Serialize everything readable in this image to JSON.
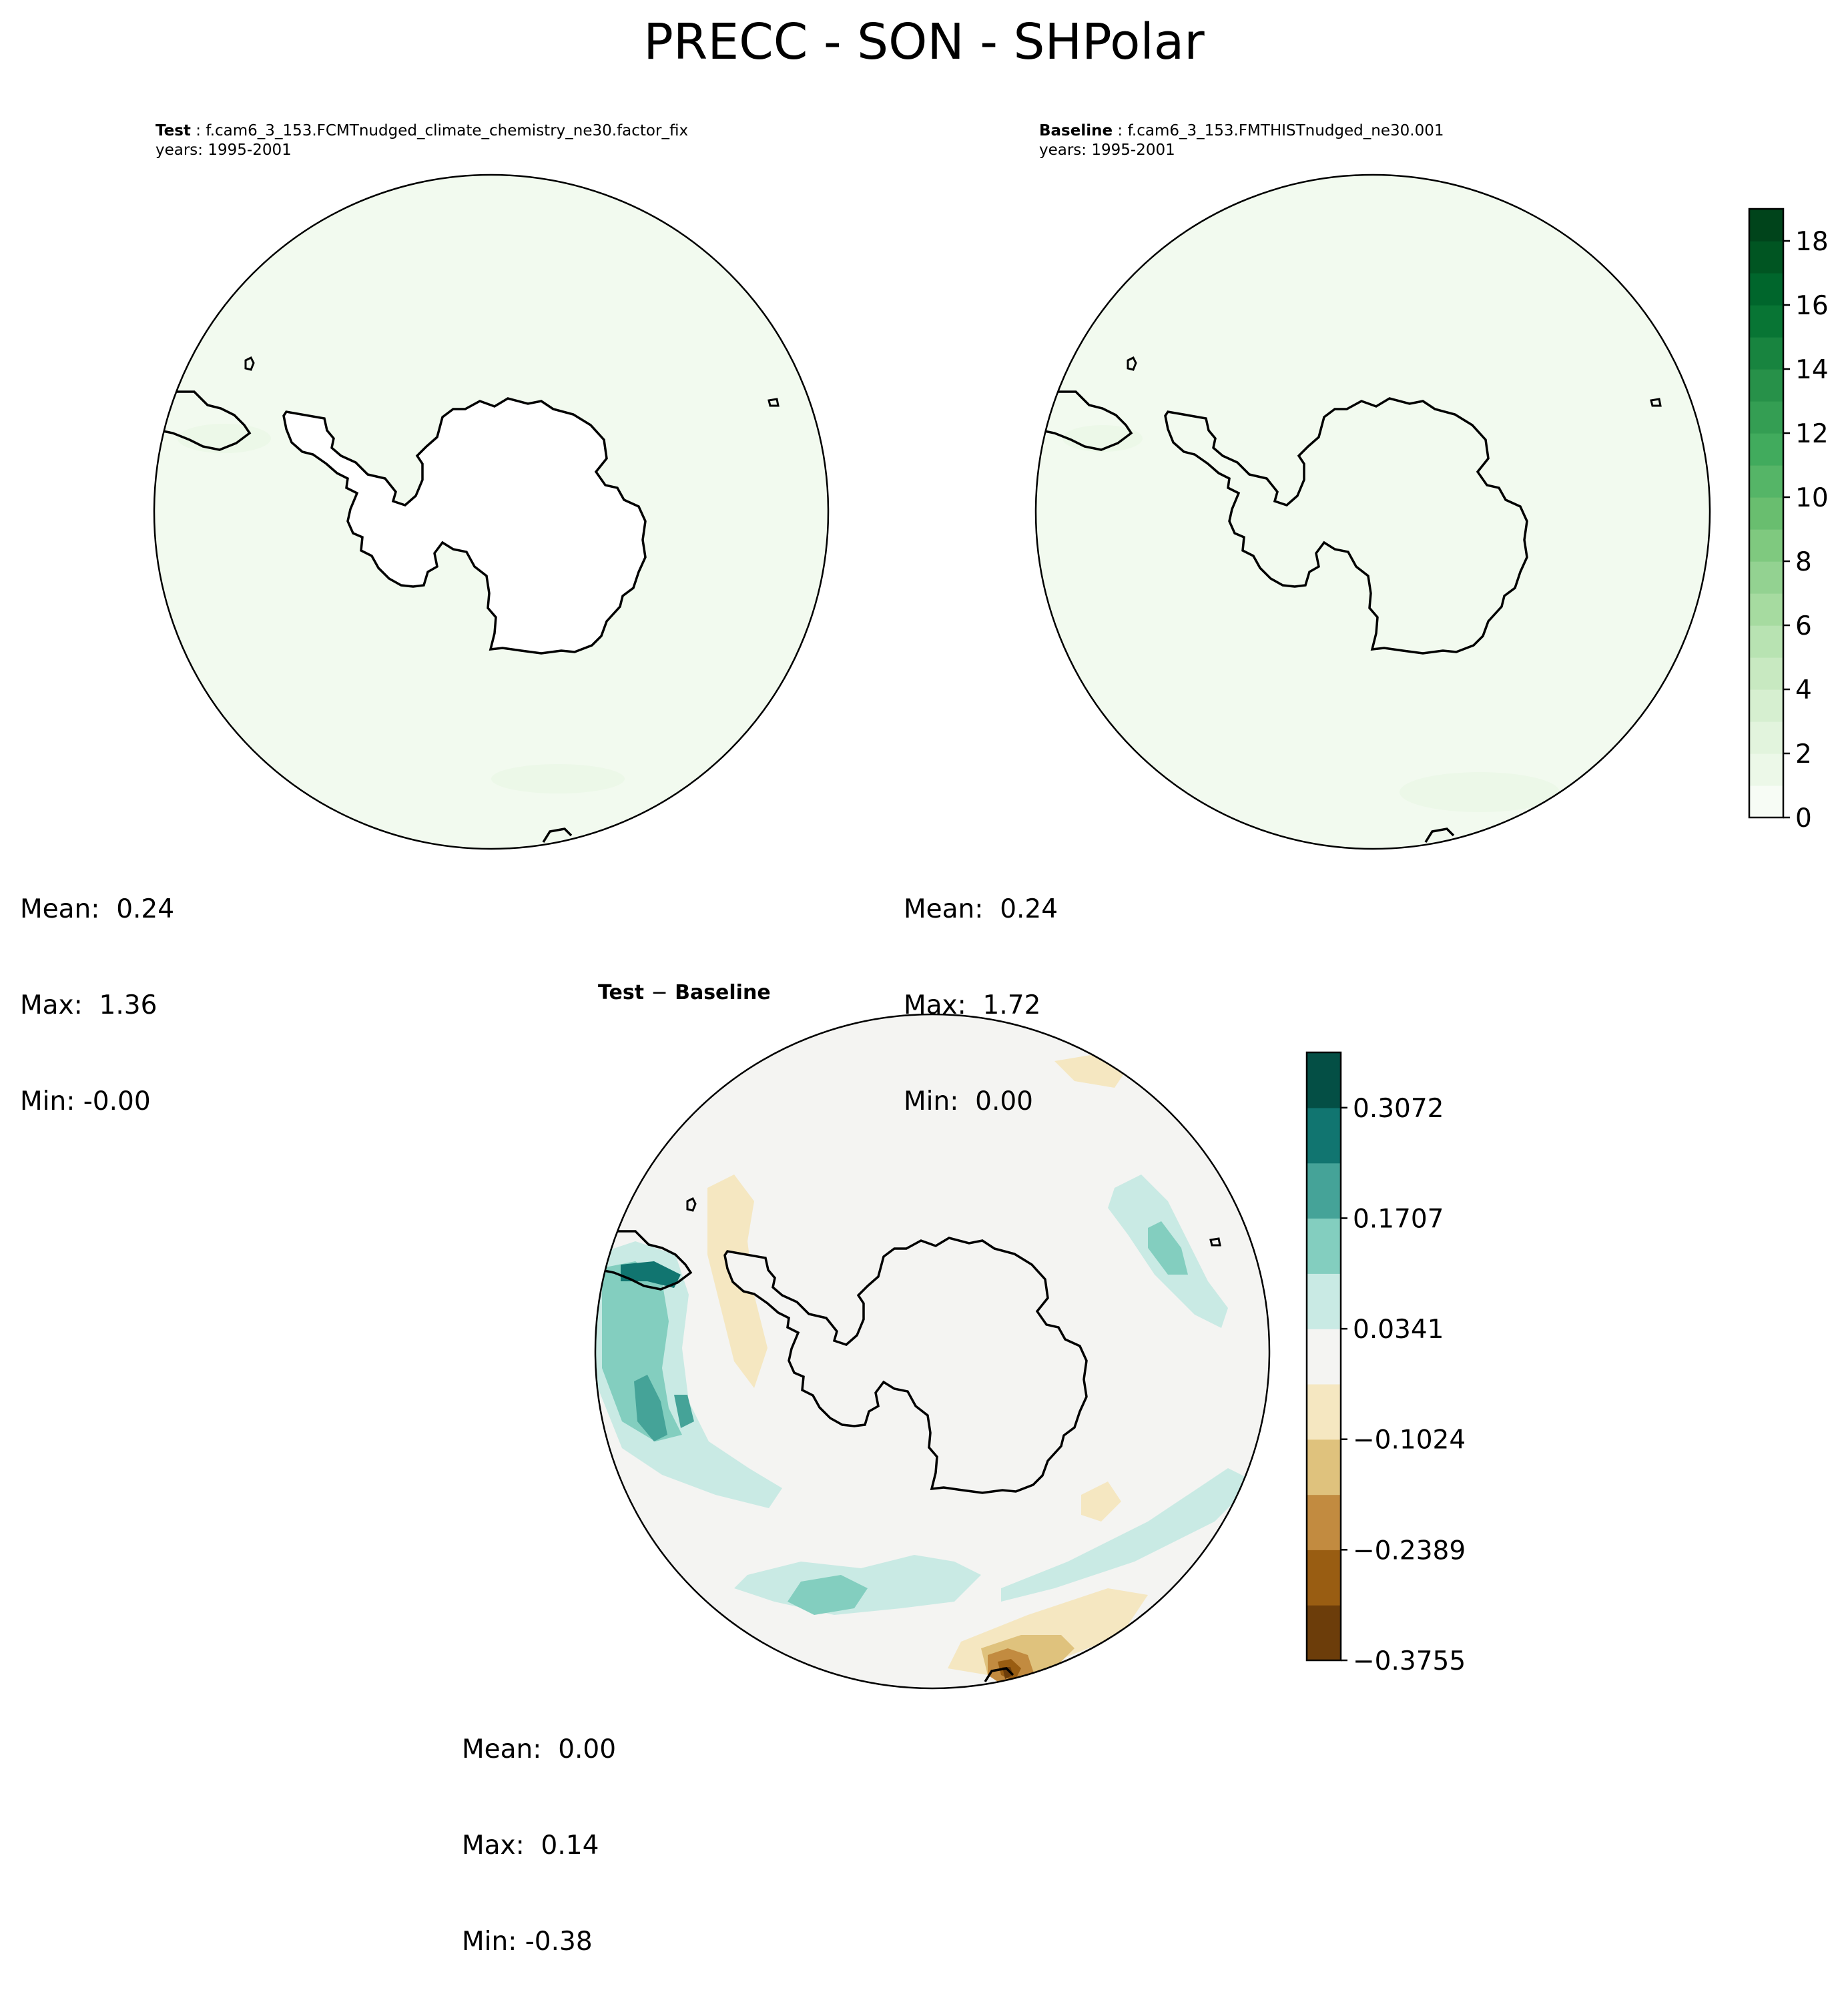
{
  "figure": {
    "title": "PRECC - SON - SHPolar"
  },
  "panels": {
    "test": {
      "label": "Test",
      "case_name": "f.cam6_3_153.FCMTnudged_climate_chemistry_ne30.factor_fix",
      "years": "years: 1995-2001",
      "stats": {
        "mean": "Mean:  0.24",
        "max": "Max:  1.36",
        "min": "Min: -0.00"
      }
    },
    "baseline": {
      "label": "Baseline",
      "case_name": "f.cam6_3_153.FMTHISTnudged_ne30.001",
      "years": "years: 1995-2001",
      "stats": {
        "mean": "Mean:  0.24",
        "max": "Max:  1.72",
        "min": "Min:  0.00"
      }
    },
    "diff": {
      "label_test": "Test",
      "label_sep": "−",
      "label_base": "Baseline",
      "stats": {
        "mean": "Mean:  0.00",
        "max": "Max:  0.14",
        "min": "Min: -0.38"
      }
    }
  },
  "chart_data": [
    {
      "type": "heatmap",
      "panel": "test",
      "projection": "south-polar-stereographic",
      "mean": 0.24,
      "max": 1.36,
      "min": -0.0
    },
    {
      "type": "heatmap",
      "panel": "baseline",
      "projection": "south-polar-stereographic",
      "mean": 0.24,
      "max": 1.72,
      "min": 0.0
    },
    {
      "type": "heatmap",
      "panel": "test-minus-baseline",
      "projection": "south-polar-stereographic",
      "mean": 0.0,
      "max": 0.14,
      "min": -0.38
    }
  ],
  "colorbars": {
    "main": {
      "cmap": "Greens",
      "vmin": 0,
      "vmax": 19,
      "ticks": [
        0,
        2,
        4,
        6,
        8,
        10,
        12,
        14,
        16,
        18
      ],
      "colors": [
        "#f7fcf5",
        "#ecf8e8",
        "#e2f4dd",
        "#d6efd0",
        "#c8e9c1",
        "#b8e3b2",
        "#a6dba0",
        "#93d291",
        "#7fc97f",
        "#69be6f",
        "#55b567",
        "#41ab5d",
        "#349e53",
        "#279149",
        "#18843f",
        "#087534",
        "#00662c",
        "#005522",
        "#00441b"
      ]
    },
    "diff": {
      "cmap": "BrBG",
      "ticks": [
        -0.3755,
        -0.2389,
        -0.1024,
        0.0341,
        0.1707,
        0.3072
      ],
      "tick_labels": [
        "−0.3755",
        "−0.2389",
        "−0.1024",
        "0.0341",
        "0.1707",
        "0.3072"
      ],
      "boundaries": [
        -0.3755,
        -0.3072,
        -0.2389,
        -0.1707,
        -0.1024,
        -0.0341,
        0.0341,
        0.1024,
        0.1707,
        0.2389,
        0.3072,
        0.3755
      ],
      "colors": [
        "#6c3d0a",
        "#995d12",
        "#c28b40",
        "#dfc27d",
        "#f5e7c1",
        "#f4f4f2",
        "#c9eae4",
        "#83cebf",
        "#45a398",
        "#117570",
        "#044f45"
      ]
    }
  },
  "styles": {
    "coast": "#000000",
    "field_main": "#f2faef",
    "field_main_light": "#ecf8e8",
    "field_diff": "#f4f4f2",
    "land_white": "#ffffff"
  }
}
